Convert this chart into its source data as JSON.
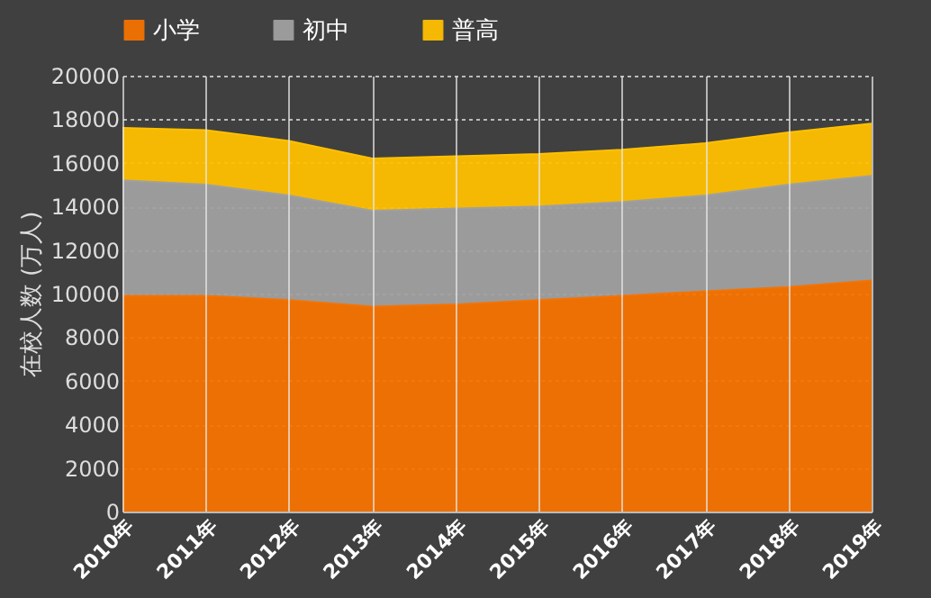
{
  "chart_data": {
    "type": "area",
    "stacked": true,
    "ylabel": "在校人数 (万人)",
    "categories": [
      "2010年",
      "2011年",
      "2012年",
      "2013年",
      "2014年",
      "2015年",
      "2016年",
      "2017年",
      "2018年",
      "2019年"
    ],
    "series": [
      {
        "name": "小学",
        "color": "#f57300",
        "values": [
          9900,
          9900,
          9700,
          9400,
          9500,
          9700,
          9900,
          10100,
          10300,
          10600
        ]
      },
      {
        "name": "初中",
        "color": "#a0a0a0",
        "values": [
          5300,
          5100,
          4800,
          4400,
          4400,
          4300,
          4300,
          4400,
          4700,
          4800
        ]
      },
      {
        "name": "普高",
        "color": "#ffc000",
        "values": [
          2400,
          2500,
          2500,
          2400,
          2400,
          2400,
          2400,
          2400,
          2400,
          2400
        ]
      }
    ],
    "ylim": [
      0,
      20000
    ],
    "yticks": [
      0,
      2000,
      4000,
      6000,
      8000,
      10000,
      12000,
      14000,
      16000,
      18000,
      20000
    ],
    "grid": true,
    "legend": "top"
  }
}
